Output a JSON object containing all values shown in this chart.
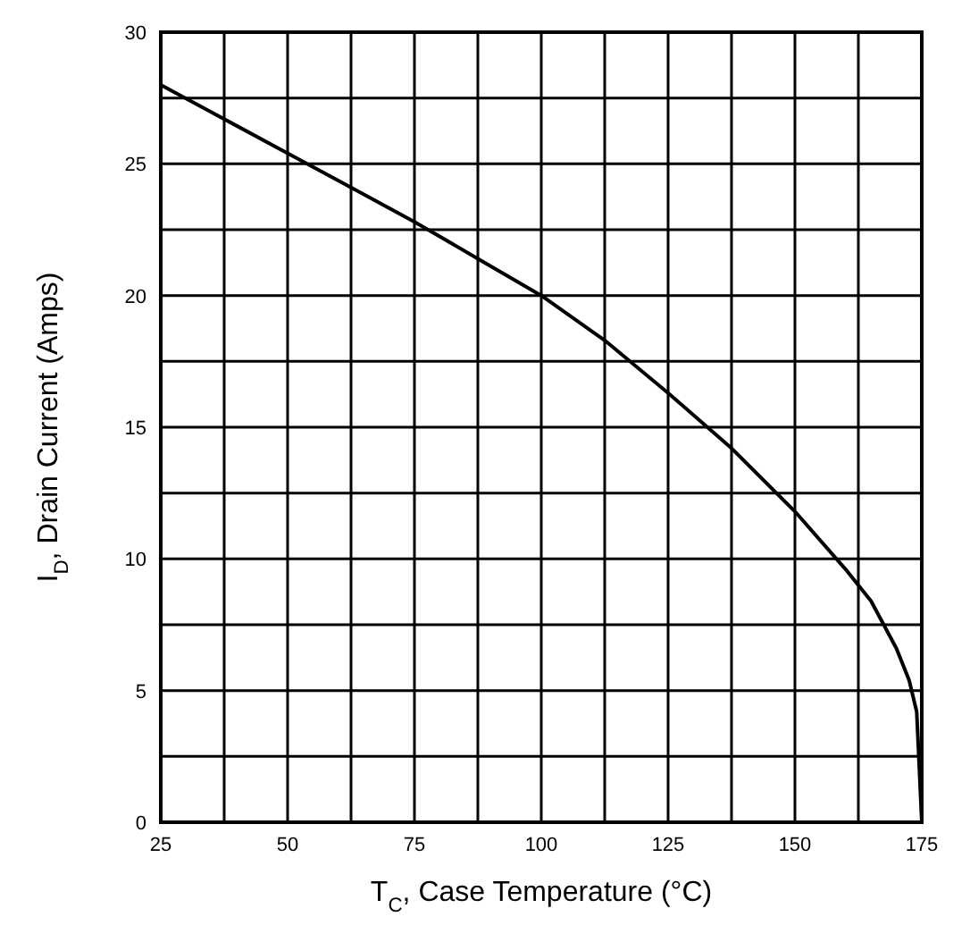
{
  "chart_data": {
    "type": "line",
    "xlabel": "T$_{C}$, Case Temperature (°C)",
    "ylabel": "I$_{D}$, Drain Current (Amps)",
    "x": [
      25,
      37.5,
      50,
      62.5,
      75,
      87.5,
      100,
      112.5,
      125,
      137.5,
      150,
      160,
      165,
      170,
      172.5,
      174,
      175
    ],
    "series": [
      {
        "color": "#000000",
        "values": [
          28,
          26.7,
          25.4,
          24.1,
          22.8,
          21.4,
          20,
          18.3,
          16.3,
          14.2,
          11.8,
          9.6,
          8.4,
          6.6,
          5.4,
          4.2,
          0
        ]
      }
    ],
    "xlim": [
      25,
      175
    ],
    "xticks": [
      25,
      {
        "value": 37.5,
        "label": null
      },
      50,
      {
        "value": 62.5,
        "label": null
      },
      75,
      {
        "value": 87.5,
        "label": null
      },
      100,
      {
        "value": 112.5,
        "label": null
      },
      125,
      {
        "value": 137.5,
        "label": null
      },
      150,
      {
        "value": 162.5,
        "label": null
      },
      175
    ],
    "ylim": [
      0,
      30
    ],
    "yticks": [
      0,
      {
        "value": 2.5,
        "label": null
      },
      5,
      {
        "value": 7.5,
        "label": null
      },
      10,
      {
        "value": 12.5,
        "label": null
      },
      15,
      {
        "value": 17.5,
        "label": null
      },
      20,
      {
        "value": 22.5,
        "label": null
      },
      25,
      {
        "value": 27.5,
        "label": null
      },
      30
    ],
    "grid": true,
    "marker": "none",
    "line_style": "solid"
  }
}
